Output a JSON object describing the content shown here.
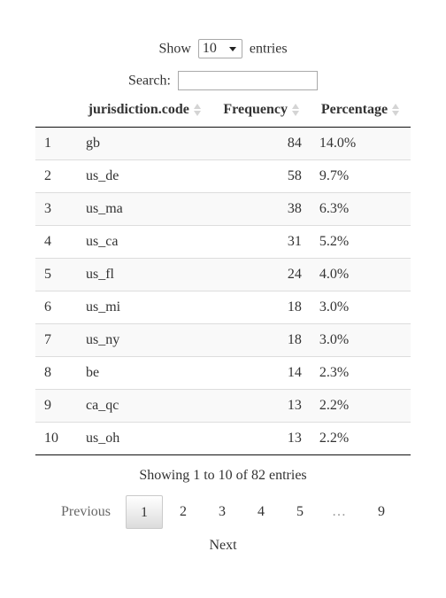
{
  "length_menu": {
    "prefix": "Show",
    "selected": "10",
    "suffix": "entries"
  },
  "search": {
    "label": "Search:",
    "value": "",
    "placeholder": ""
  },
  "table": {
    "headers": {
      "index": "",
      "code": "jurisdiction.code",
      "frequency": "Frequency",
      "percentage": "Percentage"
    },
    "rows": [
      {
        "index": "1",
        "code": "gb",
        "frequency": "84",
        "percentage": "14.0%"
      },
      {
        "index": "2",
        "code": "us_de",
        "frequency": "58",
        "percentage": "9.7%"
      },
      {
        "index": "3",
        "code": "us_ma",
        "frequency": "38",
        "percentage": "6.3%"
      },
      {
        "index": "4",
        "code": "us_ca",
        "frequency": "31",
        "percentage": "5.2%"
      },
      {
        "index": "5",
        "code": "us_fl",
        "frequency": "24",
        "percentage": "4.0%"
      },
      {
        "index": "6",
        "code": "us_mi",
        "frequency": "18",
        "percentage": "3.0%"
      },
      {
        "index": "7",
        "code": "us_ny",
        "frequency": "18",
        "percentage": "3.0%"
      },
      {
        "index": "8",
        "code": "be",
        "frequency": "14",
        "percentage": "2.3%"
      },
      {
        "index": "9",
        "code": "ca_qc",
        "frequency": "13",
        "percentage": "2.2%"
      },
      {
        "index": "10",
        "code": "us_oh",
        "frequency": "13",
        "percentage": "2.2%"
      }
    ]
  },
  "info": "Showing 1 to 10 of 82 entries",
  "pagination": {
    "previous": "Previous",
    "pages": [
      "1",
      "2",
      "3",
      "4",
      "5"
    ],
    "ellipsis": "…",
    "last": "9",
    "next": "Next",
    "current": "1"
  }
}
